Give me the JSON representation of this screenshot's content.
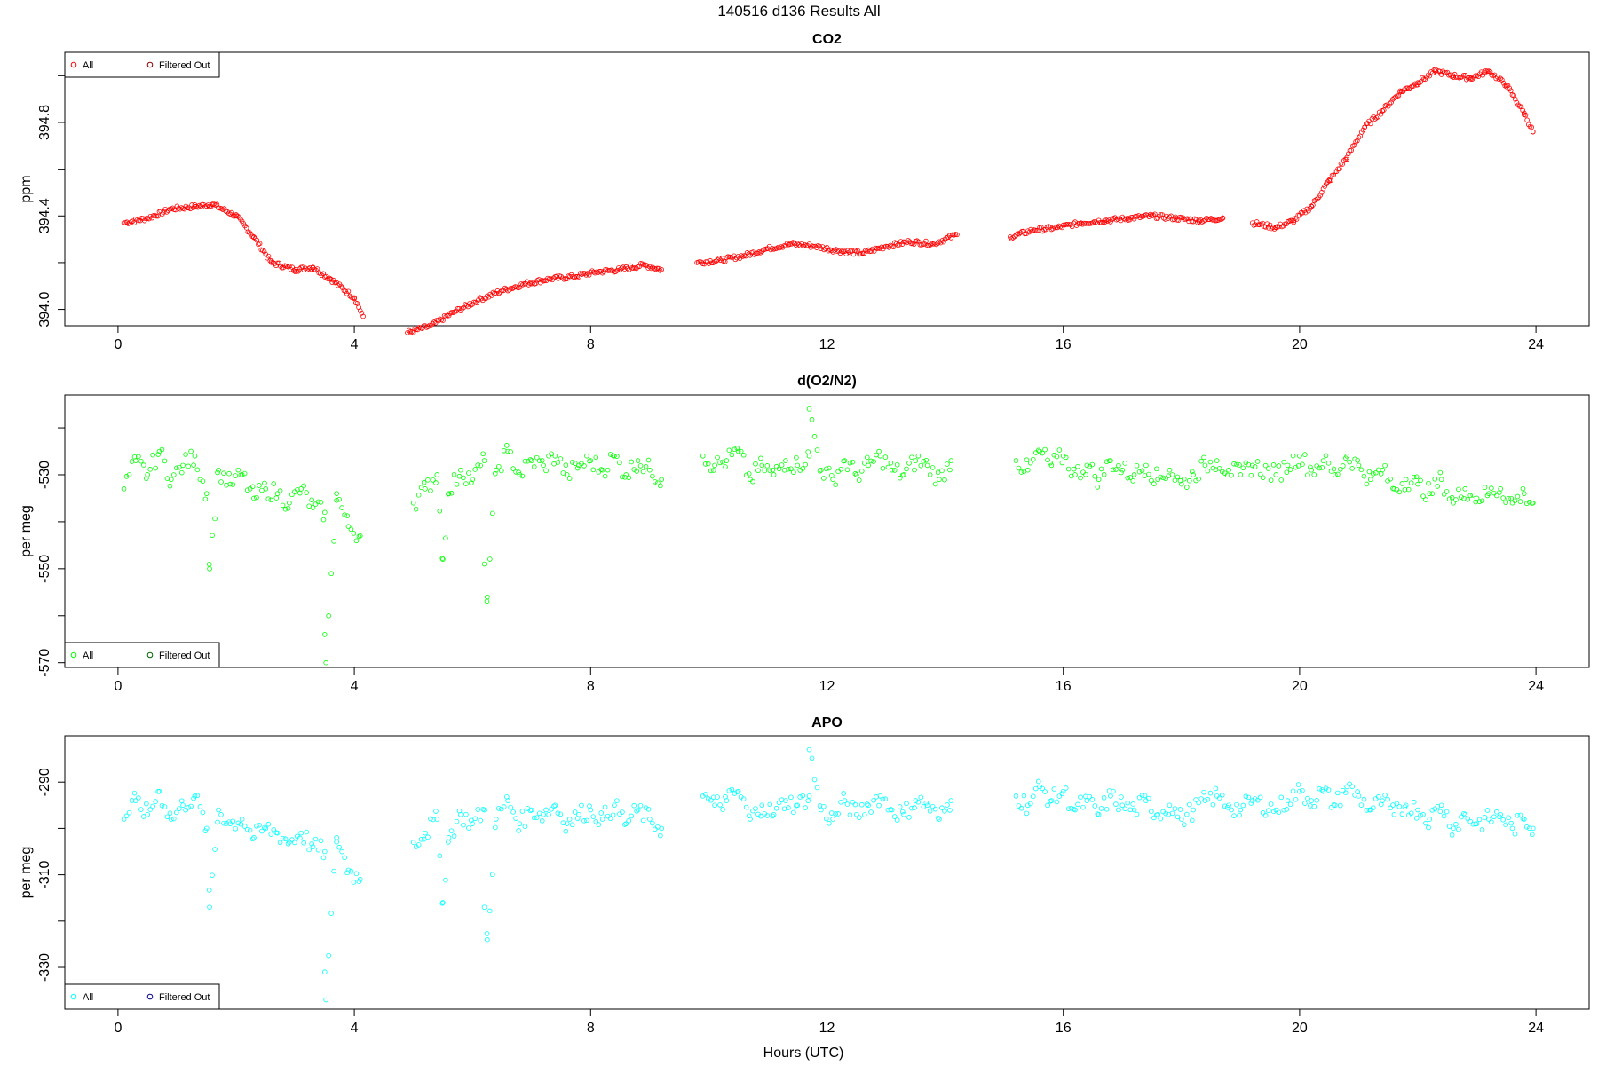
{
  "figure": {
    "title": "140516   d136   Results All",
    "xlabel": "Hours (UTC)"
  },
  "chart_data": [
    {
      "type": "scatter",
      "title": "CO2",
      "xlabel": "",
      "ylabel": "ppm",
      "xlim": [
        -0.9,
        24.9
      ],
      "ylim": [
        393.93,
        395.1
      ],
      "xticks": [
        0,
        4,
        8,
        12,
        16,
        20,
        24
      ],
      "xtick_labels": [
        "0",
        "4",
        "8",
        "12",
        "16",
        "20",
        "24"
      ],
      "yticks": [
        394.0,
        394.2,
        394.4,
        394.6,
        394.8,
        395.0
      ],
      "ytick_labels": [
        "394.0",
        "",
        "394.4",
        "",
        "394.8",
        ""
      ],
      "grid": false,
      "legend_position": "top-left",
      "legend": [
        {
          "label": "All",
          "color": "#ff0000"
        },
        {
          "label": "Filtered Out",
          "color": "#8b0000"
        }
      ],
      "series": [
        {
          "name": "All",
          "color": "#ff0000",
          "x": [
            0.1,
            0.5,
            0.9,
            1.3,
            1.6,
            2.0,
            2.3,
            2.6,
            3.0,
            3.3,
            3.6,
            4.0,
            4.15,
            4.9,
            5.3,
            5.7,
            6.1,
            6.5,
            6.9,
            7.3,
            7.7,
            8.1,
            8.5,
            8.9,
            9.2,
            9.8,
            10.2,
            10.6,
            11.0,
            11.4,
            11.8,
            12.2,
            12.6,
            13.0,
            13.4,
            13.8,
            14.2,
            15.1,
            15.5,
            15.9,
            16.3,
            16.7,
            17.1,
            17.5,
            17.9,
            18.3,
            18.7,
            19.2,
            19.6,
            19.9,
            20.2,
            20.5,
            20.8,
            21.1,
            21.4,
            21.7,
            22.0,
            22.3,
            22.6,
            22.9,
            23.2,
            23.5,
            23.8,
            23.95
          ],
          "y": [
            394.37,
            394.39,
            394.43,
            394.44,
            394.45,
            394.4,
            394.31,
            394.2,
            394.17,
            394.18,
            394.13,
            394.05,
            393.97,
            393.9,
            393.93,
            393.99,
            394.04,
            394.08,
            394.11,
            394.13,
            394.14,
            394.16,
            394.17,
            394.19,
            394.17,
            394.2,
            394.21,
            394.23,
            394.26,
            394.28,
            394.27,
            394.25,
            394.24,
            394.27,
            394.29,
            394.28,
            394.32,
            394.31,
            394.34,
            394.35,
            394.37,
            394.38,
            394.39,
            394.4,
            394.39,
            394.38,
            394.39,
            394.37,
            394.35,
            394.38,
            394.44,
            394.55,
            394.65,
            394.78,
            394.85,
            394.93,
            394.97,
            395.02,
            395.0,
            394.99,
            395.02,
            394.96,
            394.84,
            394.76
          ]
        }
      ]
    },
    {
      "type": "scatter",
      "title": "d(O2/N2)",
      "xlabel": "",
      "ylabel": "per meg",
      "xlim": [
        -0.9,
        24.9
      ],
      "ylim": [
        -571,
        -513
      ],
      "xticks": [
        0,
        4,
        8,
        12,
        16,
        20,
        24
      ],
      "xtick_labels": [
        "0",
        "4",
        "8",
        "12",
        "16",
        "20",
        "24"
      ],
      "yticks": [
        -570,
        -560,
        -550,
        -540,
        -530,
        -520
      ],
      "ytick_labels": [
        "-570",
        "",
        "-550",
        "",
        "-530",
        ""
      ],
      "grid": false,
      "legend_position": "bottom-left",
      "legend": [
        {
          "label": "All",
          "color": "#00ff00"
        },
        {
          "label": "Filtered Out",
          "color": "#006400"
        }
      ],
      "series": [
        {
          "name": "All",
          "color": "#00ff00",
          "x": [
            0.1,
            0.3,
            0.5,
            0.7,
            0.9,
            1.1,
            1.3,
            1.5,
            1.7,
            1.9,
            2.1,
            2.3,
            2.5,
            2.7,
            2.9,
            3.1,
            3.3,
            3.5,
            3.7,
            3.9,
            4.1,
            1.55,
            3.5,
            3.52,
            5.0,
            5.2,
            5.4,
            5.6,
            5.8,
            6.0,
            6.2,
            6.4,
            6.6,
            6.8,
            7.0,
            7.2,
            7.4,
            7.6,
            7.8,
            8.0,
            8.2,
            8.4,
            8.6,
            8.8,
            9.0,
            9.2,
            5.5,
            6.2,
            6.25,
            9.9,
            10.1,
            10.3,
            10.5,
            10.7,
            10.9,
            11.1,
            11.3,
            11.5,
            11.7,
            11.9,
            12.1,
            12.3,
            12.5,
            12.7,
            12.9,
            13.1,
            13.3,
            13.5,
            13.7,
            13.9,
            14.1,
            11.7,
            15.2,
            15.4,
            15.6,
            15.8,
            16.0,
            16.2,
            16.4,
            16.6,
            16.8,
            17.0,
            17.2,
            17.4,
            17.6,
            17.8,
            18.0,
            18.2,
            18.4,
            18.6,
            18.8,
            19.0,
            19.2,
            19.6,
            19.8,
            20.0,
            20.2,
            20.4,
            20.6,
            20.8,
            21.0,
            21.2,
            21.4,
            21.6,
            21.8,
            22.0,
            22.2,
            22.4,
            22.6,
            22.8,
            23.0,
            23.2,
            23.4,
            23.6,
            23.8,
            23.95
          ],
          "y": [
            -533,
            -527,
            -530,
            -525,
            -531,
            -528,
            -526,
            -534,
            -529,
            -532,
            -530,
            -535,
            -533,
            -534,
            -536,
            -533,
            -537,
            -538,
            -534,
            -541,
            -543,
            -550,
            -564,
            -570,
            -536,
            -533,
            -530,
            -534,
            -529,
            -531,
            -527,
            -529,
            -525,
            -530,
            -527,
            -528,
            -526,
            -530,
            -528,
            -527,
            -529,
            -526,
            -530,
            -527,
            -529,
            -531,
            -548,
            -549,
            -556,
            -526,
            -528,
            -527,
            -525,
            -531,
            -528,
            -530,
            -527,
            -528,
            -526,
            -529,
            -531,
            -527,
            -530,
            -528,
            -526,
            -529,
            -530,
            -527,
            -528,
            -531,
            -527,
            -516,
            -527,
            -529,
            -525,
            -528,
            -526,
            -530,
            -528,
            -531,
            -527,
            -529,
            -530,
            -528,
            -531,
            -529,
            -532,
            -530,
            -528,
            -527,
            -529,
            -530,
            -528,
            -530,
            -528,
            -526,
            -529,
            -527,
            -530,
            -526,
            -528,
            -531,
            -529,
            -533,
            -531,
            -532,
            -534,
            -531,
            -536,
            -533,
            -535,
            -534,
            -533,
            -536,
            -534,
            -536
          ]
        }
      ]
    },
    {
      "type": "scatter",
      "title": "APO",
      "xlabel": "Hours (UTC)",
      "ylabel": "per meg",
      "xlim": [
        -0.9,
        24.9
      ],
      "ylim": [
        -339,
        -280
      ],
      "xticks": [
        0,
        4,
        8,
        12,
        16,
        20,
        24
      ],
      "xtick_labels": [
        "0",
        "4",
        "8",
        "12",
        "16",
        "20",
        "24"
      ],
      "yticks": [
        -330,
        -320,
        -310,
        -300,
        -290
      ],
      "ytick_labels": [
        "-330",
        "",
        "-310",
        "",
        "-290"
      ],
      "grid": false,
      "legend_position": "bottom-left",
      "legend": [
        {
          "label": "All",
          "color": "#00ffff"
        },
        {
          "label": "Filtered Out",
          "color": "#00008b"
        }
      ],
      "series": [
        {
          "name": "All",
          "color": "#00ffff",
          "x": [
            0.1,
            0.3,
            0.5,
            0.7,
            0.9,
            1.1,
            1.3,
            1.5,
            1.7,
            1.9,
            2.1,
            2.3,
            2.5,
            2.7,
            2.9,
            3.1,
            3.3,
            3.5,
            3.7,
            3.9,
            4.1,
            1.55,
            3.5,
            3.52,
            5.0,
            5.2,
            5.4,
            5.6,
            5.8,
            6.0,
            6.2,
            6.4,
            6.6,
            6.8,
            7.0,
            7.2,
            7.4,
            7.6,
            7.8,
            8.0,
            8.2,
            8.4,
            8.6,
            8.8,
            9.0,
            9.2,
            5.5,
            6.2,
            6.25,
            9.9,
            10.1,
            10.3,
            10.5,
            10.7,
            10.9,
            11.1,
            11.3,
            11.5,
            11.7,
            11.9,
            12.1,
            12.3,
            12.5,
            12.7,
            12.9,
            13.1,
            13.3,
            13.5,
            13.7,
            13.9,
            14.1,
            11.7,
            15.2,
            15.4,
            15.6,
            15.8,
            16.0,
            16.2,
            16.4,
            16.6,
            16.8,
            17.0,
            17.2,
            17.4,
            17.6,
            17.8,
            18.0,
            18.2,
            18.4,
            18.6,
            18.8,
            19.0,
            19.2,
            19.6,
            19.8,
            20.0,
            20.2,
            20.4,
            20.6,
            20.8,
            21.0,
            21.2,
            21.4,
            21.6,
            21.8,
            22.0,
            22.2,
            22.4,
            22.6,
            22.8,
            23.0,
            23.2,
            23.4,
            23.6,
            23.8,
            23.95
          ],
          "y": [
            -298,
            -294,
            -297,
            -292,
            -298,
            -295,
            -293,
            -300,
            -296,
            -299,
            -298,
            -302,
            -300,
            -301,
            -303,
            -301,
            -304,
            -305,
            -302,
            -309,
            -311,
            -317,
            -331,
            -337,
            -303,
            -301,
            -298,
            -302,
            -297,
            -299,
            -296,
            -298,
            -294,
            -299,
            -296,
            -297,
            -295,
            -299,
            -297,
            -296,
            -298,
            -295,
            -299,
            -296,
            -298,
            -300,
            -316,
            -317,
            -324,
            -293,
            -295,
            -294,
            -292,
            -298,
            -295,
            -297,
            -294,
            -295,
            -293,
            -296,
            -298,
            -294,
            -297,
            -295,
            -293,
            -296,
            -297,
            -294,
            -295,
            -298,
            -294,
            -283,
            -293,
            -295,
            -291,
            -294,
            -292,
            -296,
            -294,
            -297,
            -293,
            -295,
            -296,
            -294,
            -297,
            -295,
            -298,
            -296,
            -294,
            -293,
            -295,
            -296,
            -294,
            -296,
            -294,
            -292,
            -294,
            -292,
            -295,
            -291,
            -293,
            -296,
            -294,
            -297,
            -295,
            -296,
            -298,
            -295,
            -300,
            -297,
            -299,
            -298,
            -297,
            -300,
            -298,
            -300
          ]
        }
      ]
    }
  ]
}
